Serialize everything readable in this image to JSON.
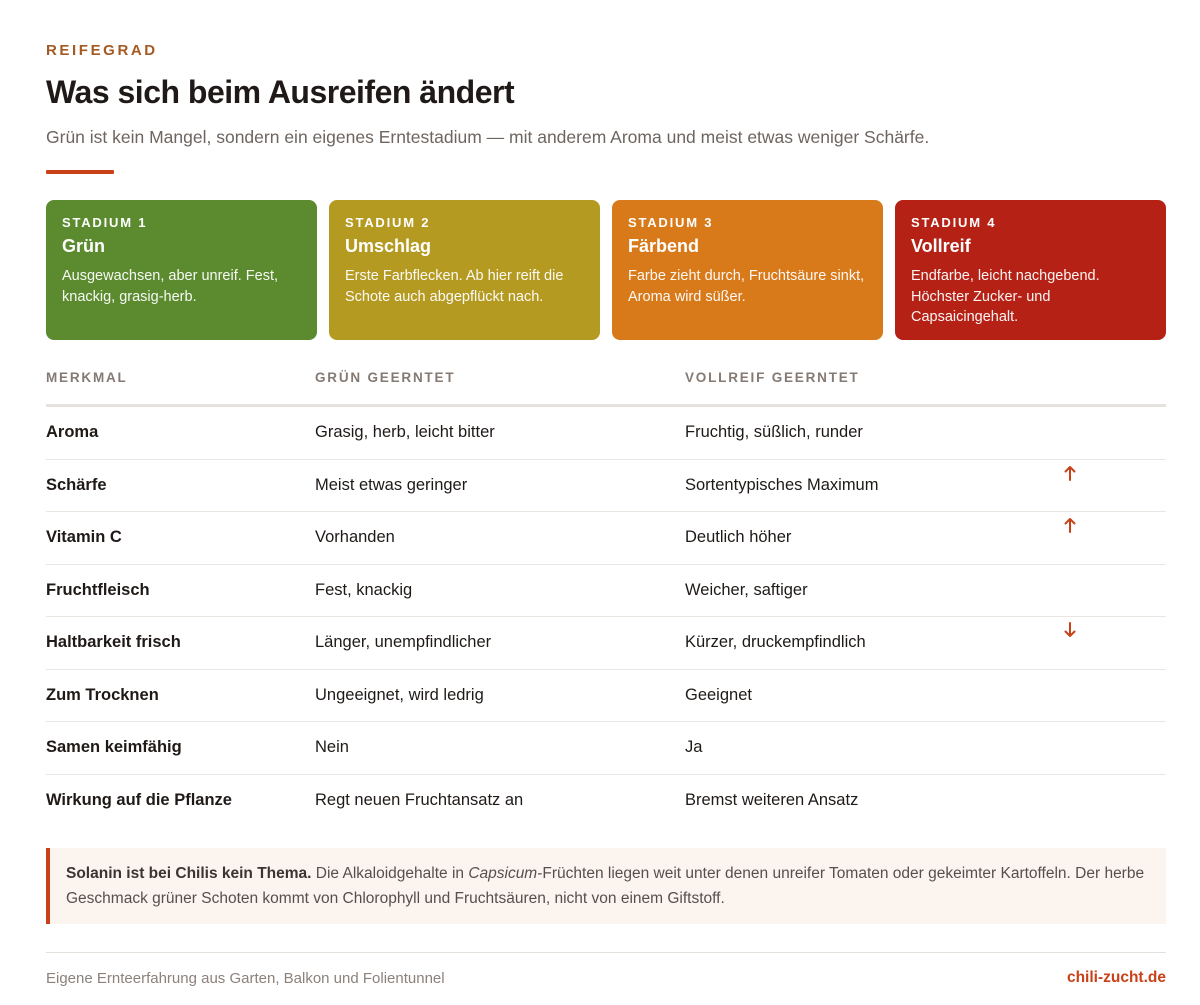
{
  "header": {
    "eyebrow": "REIFEGRAD",
    "title": "Was sich beim Ausreifen ändert",
    "subtitle": "Grün ist kein Mangel, sondern ein eigenes Erntestadium — mit anderem Aroma und meist etwas weniger Schärfe."
  },
  "stages": [
    {
      "number": "STADIUM 1",
      "name": "Grün",
      "description": "Ausgewachsen, aber unreif. Fest, knackig, grasig-herb.",
      "color": "#5b8b2e"
    },
    {
      "number": "STADIUM 2",
      "name": "Umschlag",
      "description": "Erste Farbflecken. Ab hier reift die Schote auch abgepflückt nach.",
      "color": "#b59a22"
    },
    {
      "number": "STADIUM 3",
      "name": "Färbend",
      "description": "Farbe zieht durch, Fruchtsäure sinkt, Aroma wird süßer.",
      "color": "#d97a1a"
    },
    {
      "number": "STADIUM 4",
      "name": "Vollreif",
      "description": "Endfarbe, leicht nachgebend. Höchster Zucker- und Capsaicingehalt.",
      "color": "#b52215"
    }
  ],
  "table": {
    "headers": [
      "MERKMAL",
      "GRÜN GEERNTET",
      "VOLLREIF GEERNTET"
    ],
    "rows": [
      {
        "feature": "Aroma",
        "green": "Grasig, herb, leicht bitter",
        "ripe": "Fruchtig, süßlich, runder",
        "trend": ""
      },
      {
        "feature": "Schärfe",
        "green": "Meist etwas geringer",
        "ripe": "Sortentypisches Maximum",
        "trend": "up"
      },
      {
        "feature": "Vitamin C",
        "green": "Vorhanden",
        "ripe": "Deutlich höher",
        "trend": "up"
      },
      {
        "feature": "Fruchtfleisch",
        "green": "Fest, knackig",
        "ripe": "Weicher, saftiger",
        "trend": ""
      },
      {
        "feature": "Haltbarkeit frisch",
        "green": "Länger, unempfindlicher",
        "ripe": "Kürzer, druckempfindlich",
        "trend": "down"
      },
      {
        "feature": "Zum Trocknen",
        "green": "Ungeeignet, wird ledrig",
        "ripe": "Geeignet",
        "trend": ""
      },
      {
        "feature": "Samen keimfähig",
        "green": "Nein",
        "ripe": "Ja",
        "trend": ""
      },
      {
        "feature": "Wirkung auf die Pflanze",
        "green": "Regt neuen Fruchtansatz an",
        "ripe": "Bremst weiteren Ansatz",
        "trend": ""
      }
    ]
  },
  "note": {
    "bold": "Solanin ist bei Chilis kein Thema.",
    "text_before_italic": " Die Alkaloidgehalte in ",
    "italic": "Capsicum",
    "text_after_italic": "-Früchten liegen weit unter denen unreifer Tomaten oder gekeimter Kartoffeln. Der herbe Geschmack grüner Schoten kommt von Chlorophyll und Fruchtsäuren, nicht von einem Giftstoff."
  },
  "footer": {
    "left": "Eigene Ernteerfahrung aus Garten, Balkon und Folientunnel",
    "right": "chili-zucht.de"
  },
  "colors": {
    "accent": "#c94117",
    "trend_arrow": "#c94117"
  }
}
